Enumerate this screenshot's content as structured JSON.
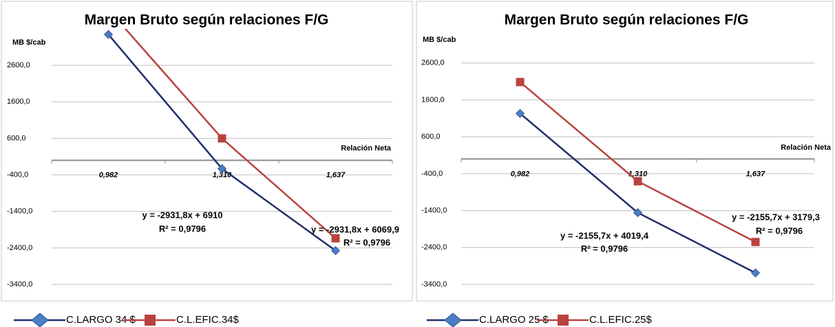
{
  "chart_data": [
    {
      "type": "line",
      "title": "Margen Bruto según relaciones F/G",
      "y_label": "MB $/cab",
      "x_label": "Relación Neta",
      "categories": [
        "0,982",
        "1,310",
        "1,637"
      ],
      "ylim": [
        -3400,
        3600
      ],
      "yticks": [
        {
          "value": 2600,
          "label": "2600,0"
        },
        {
          "value": 1600,
          "label": "1600,0"
        },
        {
          "value": 600,
          "label": "600,0"
        },
        {
          "value": -400,
          "label": "-400,0"
        },
        {
          "value": -1400,
          "label": "-1400,0"
        },
        {
          "value": -2400,
          "label": "-2400,0"
        },
        {
          "value": -3400,
          "label": "-3400,0"
        }
      ],
      "grid": true,
      "series": [
        {
          "name": "C.LARGO 34 $",
          "color": "#1f2d6b",
          "marker_color": "#4a7ec4",
          "marker": "diamond",
          "values": [
            3446,
            -231,
            -2475
          ]
        },
        {
          "name": "C.L.EFIC.34$",
          "color": "#b8433e",
          "marker_color": "#b8433e",
          "marker": "square",
          "values": [
            4130,
            600,
            -2137
          ]
        }
      ],
      "annotations": [
        "y = -2931,8x + 6910",
        "R² = 0,9796",
        "y = -2931,8x + 6069,9",
        "R² = 0,9796"
      ]
    },
    {
      "type": "line",
      "title": "Margen Bruto según relaciones F/G",
      "y_label": "MB $/cab",
      "x_label": "Relación Neta",
      "categories": [
        "0,982",
        "1,310",
        "1,637"
      ],
      "ylim": [
        -3400,
        3600
      ],
      "yticks": [
        {
          "value": 2600,
          "label": "2600,0"
        },
        {
          "value": 1600,
          "label": "1600,0"
        },
        {
          "value": 600,
          "label": "600,0"
        },
        {
          "value": -400,
          "label": "-400,0"
        },
        {
          "value": -1400,
          "label": "-1400,0"
        },
        {
          "value": -2400,
          "label": "-2400,0"
        },
        {
          "value": -3400,
          "label": "-3400,0"
        }
      ],
      "grid": true,
      "series": [
        {
          "name": "C.LARGO 25 $",
          "color": "#1f2d6b",
          "marker_color": "#4a7ec4",
          "marker": "diamond",
          "values": [
            1233,
            -1456,
            -3089
          ]
        },
        {
          "name": "C.L.EFIC.25$",
          "color": "#b8433e",
          "marker_color": "#b8433e",
          "marker": "square",
          "values": [
            2084,
            -605,
            -2251
          ]
        }
      ],
      "annotations": [
        "y = -2155,7x + 4019,4",
        "R² = 0,9796",
        "y = -2155,7x + 3179,3",
        "R² = 0,9796"
      ]
    }
  ]
}
